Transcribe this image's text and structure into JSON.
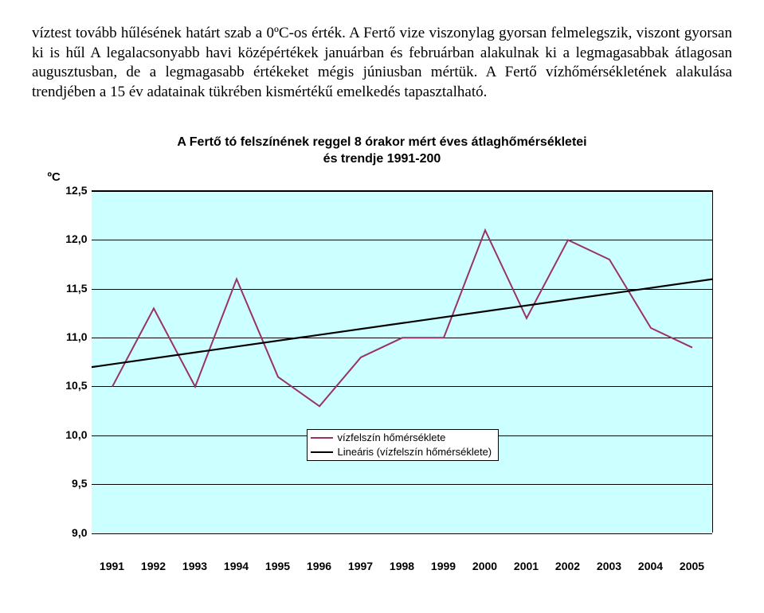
{
  "paragraph": "víztest tovább hűlésének határt szab a 0ºC-os érték. A Fertő vize viszonylag gyorsan felmelegszik, viszont gyorsan ki is hűl A legalacsonyabb havi középértékek januárban és februárban alakulnak ki a legmagasabbak átlagosan augusztusban, de a legmagasabb értékeket mégis júniusban mértük. A Fertő vízhőmérsékletének alakulása trendjében a 15 év adatainak tükrében kismértékű emelkedés tapasztalható.",
  "chart": {
    "type": "line",
    "title_line1": "A Fertő tó felszínének reggel 8 órakor mért éves átlaghőmérsékletei",
    "title_line2": "és trendje 1991-200",
    "title_fontsize": 16,
    "ylabel": "ºC",
    "ylabel_fontsize": 15,
    "categories": [
      "1991",
      "1992",
      "1993",
      "1994",
      "1995",
      "1996",
      "1997",
      "1998",
      "1999",
      "2000",
      "2001",
      "2002",
      "2003",
      "2004",
      "2005"
    ],
    "values": [
      10.5,
      11.3,
      10.5,
      11.6,
      10.6,
      10.3,
      10.8,
      11.0,
      11.0,
      12.1,
      11.2,
      12.0,
      11.8,
      11.1,
      10.9
    ],
    "trend_start": 10.7,
    "trend_end": 11.6,
    "ylim": [
      9.0,
      12.5
    ],
    "ytick_step": 0.5,
    "yticks": [
      "9,0",
      "9,5",
      "10,0",
      "10,5",
      "11,0",
      "11,5",
      "12,0",
      "12,5"
    ],
    "background_color": "#ccffff",
    "plot_fill": "#ccffff",
    "grid_color": "#000000",
    "series_color": "#993366",
    "series_width": 2,
    "trend_color": "#000000",
    "trend_width": 2.2,
    "legend_series": "vízfelszín hőmérséklete",
    "legend_trend": "Lineáris (vízfelszín hőmérséklete)",
    "tick_fontsize": 14
  }
}
